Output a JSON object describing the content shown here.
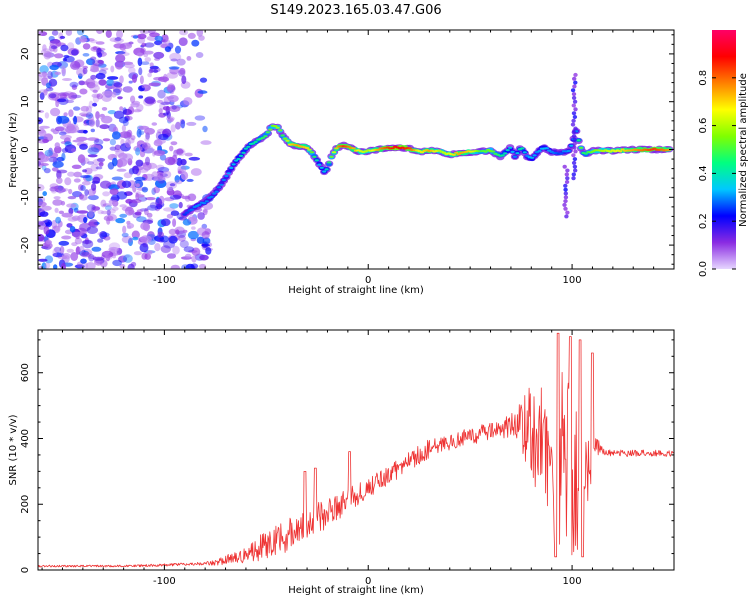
{
  "title": "S149.2023.165.03.47.G06",
  "chart_data": [
    {
      "type": "heatmap",
      "xlabel": "Height of straight line (km)",
      "ylabel": "Frequency (Hz)",
      "xlim": [
        -162,
        150
      ],
      "ylim": [
        -25,
        25
      ],
      "xticks": [
        -100,
        0,
        100
      ],
      "yticks": [
        -20,
        -10,
        0,
        10,
        20
      ],
      "colorbar": {
        "label": "Normalized spectral amplitude",
        "range": [
          0,
          1
        ],
        "ticks": [
          "0.0",
          "0.2",
          "0.4",
          "0.6",
          "0.8"
        ],
        "tick_values": [
          0,
          0.2,
          0.4,
          0.6,
          0.8
        ],
        "colormap": [
          "#e6d6ff",
          "#8a2be2",
          "#0000ff",
          "#00c8ff",
          "#00ff80",
          "#80ff00",
          "#ffff00",
          "#ff8000",
          "#ff0000",
          "#ff0066"
        ]
      },
      "ridge": {
        "x": [
          -90,
          -85,
          -80,
          -75,
          -70,
          -66,
          -62,
          -58,
          -54,
          -50,
          -47,
          -44,
          -42,
          -38,
          -35,
          -30,
          -27,
          -24,
          -21,
          -18,
          -15,
          -12,
          -8,
          -4,
          0,
          5,
          10,
          15,
          20,
          25,
          30,
          35,
          40,
          45,
          50,
          55,
          60,
          65,
          70,
          72,
          75,
          78,
          80,
          83,
          86,
          90,
          94,
          96,
          98,
          100,
          102,
          104,
          106,
          110,
          115,
          120,
          130,
          140,
          148
        ],
        "y": [
          -13.5,
          -12,
          -11,
          -9,
          -6,
          -3,
          -1,
          1,
          2,
          3,
          5,
          4.5,
          3,
          1,
          0.8,
          0.5,
          -1,
          -3,
          -5,
          -1.5,
          0.5,
          0.8,
          0.2,
          -0.5,
          -0.3,
          0,
          0.3,
          0.5,
          0.2,
          -0.5,
          -0.2,
          -0.3,
          -1,
          -0.8,
          -0.5,
          -0.4,
          -0.2,
          -1.5,
          0.5,
          -1.5,
          0.5,
          -1.5,
          -2,
          -0.5,
          0.5,
          -0.5,
          -0.8,
          -0.5,
          -0.4,
          1,
          4,
          0.5,
          -1,
          -0.3,
          -0.2,
          -0.3,
          0,
          0,
          0
        ],
        "amplitude": [
          0.25,
          0.3,
          0.3,
          0.3,
          0.3,
          0.35,
          0.4,
          0.4,
          0.45,
          0.5,
          0.55,
          0.6,
          0.5,
          0.7,
          0.75,
          0.7,
          0.5,
          0.35,
          0.35,
          0.55,
          0.75,
          0.85,
          0.75,
          0.65,
          0.6,
          0.75,
          0.85,
          0.9,
          0.85,
          0.65,
          0.75,
          0.6,
          0.65,
          0.75,
          0.7,
          0.5,
          0.55,
          0.45,
          0.35,
          0.3,
          0.45,
          0.3,
          0.35,
          0.3,
          0.35,
          0.3,
          0.25,
          0.3,
          0.3,
          0.35,
          0.3,
          0.55,
          0.45,
          0.55,
          0.6,
          0.65,
          0.75,
          0.85,
          0.75
        ]
      },
      "noise_region": {
        "x_range": [
          -162,
          -78
        ],
        "amplitude": [
          0.05,
          0.3
        ]
      },
      "spikes": [
        {
          "x": 101,
          "y_range": [
            -6,
            16
          ]
        },
        {
          "x": 97,
          "y_range": [
            -14,
            -3
          ]
        }
      ]
    },
    {
      "type": "line",
      "xlabel": "Height of straight line (km)",
      "ylabel": "SNR (10 * v/v)",
      "xlim": [
        -162,
        150
      ],
      "ylim": [
        0,
        730
      ],
      "xticks": [
        -100,
        0,
        100
      ],
      "yticks": [
        0,
        200,
        400,
        600
      ],
      "color": "#ee3333",
      "x": [
        -162,
        -140,
        -120,
        -100,
        -90,
        -80,
        -75,
        -70,
        -65,
        -60,
        -55,
        -50,
        -45,
        -40,
        -35,
        -30,
        -25,
        -20,
        -15,
        -10,
        -5,
        0,
        5,
        10,
        15,
        20,
        25,
        30,
        35,
        40,
        45,
        50,
        55,
        60,
        65,
        70,
        75,
        78,
        80,
        83,
        86,
        90,
        93,
        96,
        99,
        102,
        105,
        108,
        111,
        115,
        120,
        130,
        140,
        150
      ],
      "y": [
        12,
        12,
        12,
        15,
        18,
        20,
        22,
        30,
        35,
        45,
        60,
        80,
        90,
        110,
        120,
        140,
        160,
        170,
        190,
        210,
        230,
        250,
        270,
        290,
        310,
        330,
        350,
        370,
        380,
        390,
        400,
        410,
        415,
        420,
        430,
        440,
        440,
        430,
        420,
        400,
        380,
        360,
        340,
        320,
        300,
        280,
        260,
        320,
        390,
        360,
        355,
        355,
        355,
        355
      ],
      "spread": [
        3,
        3,
        3,
        4,
        4,
        5,
        8,
        15,
        20,
        25,
        35,
        45,
        50,
        55,
        55,
        50,
        45,
        45,
        40,
        40,
        35,
        30,
        30,
        30,
        30,
        30,
        30,
        30,
        28,
        28,
        28,
        28,
        28,
        28,
        30,
        40,
        70,
        120,
        150,
        170,
        180,
        220,
        270,
        280,
        290,
        270,
        250,
        120,
        40,
        12,
        10,
        10,
        10,
        10
      ],
      "peaks": [
        {
          "x": -31,
          "y": 300
        },
        {
          "x": -26,
          "y": 310
        },
        {
          "x": -9,
          "y": 360
        },
        {
          "x": 93,
          "y": 720
        },
        {
          "x": 99,
          "y": 710
        },
        {
          "x": 104,
          "y": 700
        },
        {
          "x": 110,
          "y": 660
        }
      ],
      "troughs": [
        {
          "x": 92,
          "y": 40
        },
        {
          "x": 105,
          "y": 40
        }
      ]
    }
  ]
}
